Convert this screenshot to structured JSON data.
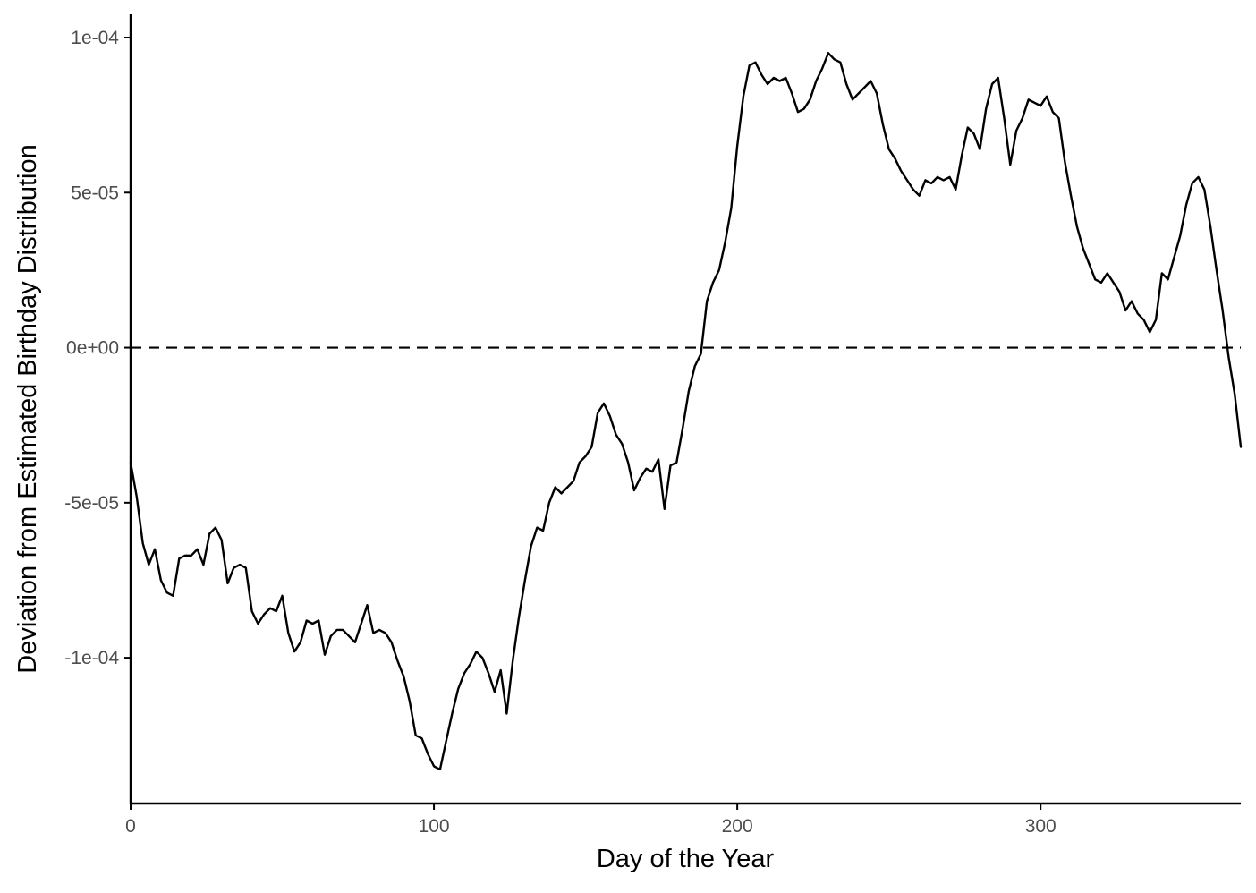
{
  "chart_data": {
    "type": "line",
    "title": "",
    "xlabel": "Day of the Year",
    "ylabel": "Deviation from Estimated Birthday Distribution",
    "xlim": [
      0,
      366
    ],
    "ylim": [
      -0.000147,
      0.0001075
    ],
    "x_ticks": [
      {
        "value": 0,
        "label": "0"
      },
      {
        "value": 100,
        "label": "100"
      },
      {
        "value": 200,
        "label": "200"
      },
      {
        "value": 300,
        "label": "300"
      }
    ],
    "y_ticks": [
      {
        "value": 0.0001,
        "label": "1e-04"
      },
      {
        "value": 5e-05,
        "label": "5e-05"
      },
      {
        "value": 0,
        "label": "0e+00"
      },
      {
        "value": -5e-05,
        "label": "-5e-05"
      },
      {
        "value": -0.0001,
        "label": "-1e-04"
      }
    ],
    "reference_line": {
      "y": 0,
      "style": "dashed",
      "color": "#000000"
    },
    "grid": false,
    "legend": "none",
    "series": [
      {
        "color": "#000000",
        "x": [
          0,
          2,
          4,
          6,
          8,
          10,
          12,
          14,
          16,
          18,
          20,
          22,
          24,
          26,
          28,
          30,
          32,
          34,
          36,
          38,
          40,
          42,
          44,
          46,
          48,
          50,
          52,
          54,
          56,
          58,
          60,
          62,
          64,
          66,
          68,
          70,
          72,
          74,
          76,
          78,
          80,
          82,
          84,
          86,
          88,
          90,
          92,
          94,
          96,
          98,
          100,
          102,
          104,
          106,
          108,
          110,
          112,
          114,
          116,
          118,
          120,
          122,
          124,
          126,
          128,
          130,
          132,
          134,
          136,
          138,
          140,
          142,
          144,
          146,
          148,
          150,
          152,
          154,
          156,
          158,
          160,
          162,
          164,
          166,
          168,
          170,
          172,
          174,
          176,
          178,
          180,
          182,
          184,
          186,
          188,
          190,
          192,
          194,
          196,
          198,
          200,
          202,
          204,
          206,
          208,
          210,
          212,
          214,
          216,
          218,
          220,
          222,
          224,
          226,
          228,
          230,
          232,
          234,
          236,
          238,
          240,
          242,
          244,
          246,
          248,
          250,
          252,
          254,
          256,
          258,
          260,
          262,
          264,
          266,
          268,
          270,
          272,
          274,
          276,
          278,
          280,
          282,
          284,
          286,
          288,
          290,
          292,
          294,
          296,
          298,
          300,
          302,
          304,
          306,
          308,
          310,
          312,
          314,
          316,
          318,
          320,
          322,
          324,
          326,
          328,
          330,
          332,
          334,
          336,
          338,
          340,
          342,
          344,
          346,
          348,
          350,
          352,
          354,
          356,
          358,
          360,
          362,
          364,
          366
        ],
        "y": [
          -3.7e-05,
          -4.8e-05,
          -6.3e-05,
          -7e-05,
          -6.5e-05,
          -7.5e-05,
          -7.9e-05,
          -8e-05,
          -6.8e-05,
          -6.7e-05,
          -6.7e-05,
          -6.5e-05,
          -7e-05,
          -6e-05,
          -5.8e-05,
          -6.2e-05,
          -7.6e-05,
          -7.1e-05,
          -7e-05,
          -7.1e-05,
          -8.5e-05,
          -8.9e-05,
          -8.6e-05,
          -8.4e-05,
          -8.5e-05,
          -8e-05,
          -9.2e-05,
          -9.8e-05,
          -9.5e-05,
          -8.8e-05,
          -8.9e-05,
          -8.8e-05,
          -9.9e-05,
          -9.3e-05,
          -9.1e-05,
          -9.1e-05,
          -9.3e-05,
          -9.5e-05,
          -8.9e-05,
          -8.3e-05,
          -9.2e-05,
          -9.1e-05,
          -9.2e-05,
          -9.5e-05,
          -0.000101,
          -0.000106,
          -0.000114,
          -0.000125,
          -0.000126,
          -0.000131,
          -0.000135,
          -0.000136,
          -0.000127,
          -0.000118,
          -0.00011,
          -0.000105,
          -0.000102,
          -9.8e-05,
          -0.0001,
          -0.000105,
          -0.000111,
          -0.000104,
          -0.000118,
          -0.000101,
          -8.7e-05,
          -7.5e-05,
          -6.4e-05,
          -5.8e-05,
          -5.9e-05,
          -5e-05,
          -4.5e-05,
          -4.7e-05,
          -4.5e-05,
          -4.3e-05,
          -3.7e-05,
          -3.5e-05,
          -3.2e-05,
          -2.1e-05,
          -1.8e-05,
          -2.2e-05,
          -2.8e-05,
          -3.1e-05,
          -3.7e-05,
          -4.6e-05,
          -4.2e-05,
          -3.9e-05,
          -4e-05,
          -3.6e-05,
          -5.2e-05,
          -3.8e-05,
          -3.7e-05,
          -2.6e-05,
          -1.4e-05,
          -6e-06,
          -2e-06,
          1.5e-05,
          2.1e-05,
          2.5e-05,
          3.4e-05,
          4.5e-05,
          6.5e-05,
          8.1e-05,
          9.1e-05,
          9.2e-05,
          8.8e-05,
          8.5e-05,
          8.7e-05,
          8.6e-05,
          8.7e-05,
          8.2e-05,
          7.6e-05,
          7.7e-05,
          8e-05,
          8.6e-05,
          9e-05,
          9.5e-05,
          9.3e-05,
          9.2e-05,
          8.5e-05,
          8e-05,
          8.2e-05,
          8.4e-05,
          8.6e-05,
          8.2e-05,
          7.2e-05,
          6.4e-05,
          6.1e-05,
          5.7e-05,
          5.4e-05,
          5.1e-05,
          4.9e-05,
          5.4e-05,
          5.3e-05,
          5.5e-05,
          5.4e-05,
          5.5e-05,
          5.1e-05,
          6.2e-05,
          7.1e-05,
          6.9e-05,
          6.4e-05,
          7.7e-05,
          8.5e-05,
          8.7e-05,
          7.4e-05,
          5.9e-05,
          7e-05,
          7.4e-05,
          8e-05,
          7.9e-05,
          7.8e-05,
          8.1e-05,
          7.6e-05,
          7.4e-05,
          6e-05,
          4.9e-05,
          3.9e-05,
          3.2e-05,
          2.7e-05,
          2.2e-05,
          2.1e-05,
          2.4e-05,
          2.1e-05,
          1.8e-05,
          1.2e-05,
          1.5e-05,
          1.1e-05,
          9e-06,
          5e-06,
          9e-06,
          2.4e-05,
          2.2e-05,
          2.9e-05,
          3.6e-05,
          4.6e-05,
          5.3e-05,
          5.5e-05,
          5.1e-05,
          3.9e-05,
          2.5e-05,
          1.2e-05,
          -3e-06,
          -1.5e-05,
          -3.2e-05
        ]
      }
    ]
  }
}
